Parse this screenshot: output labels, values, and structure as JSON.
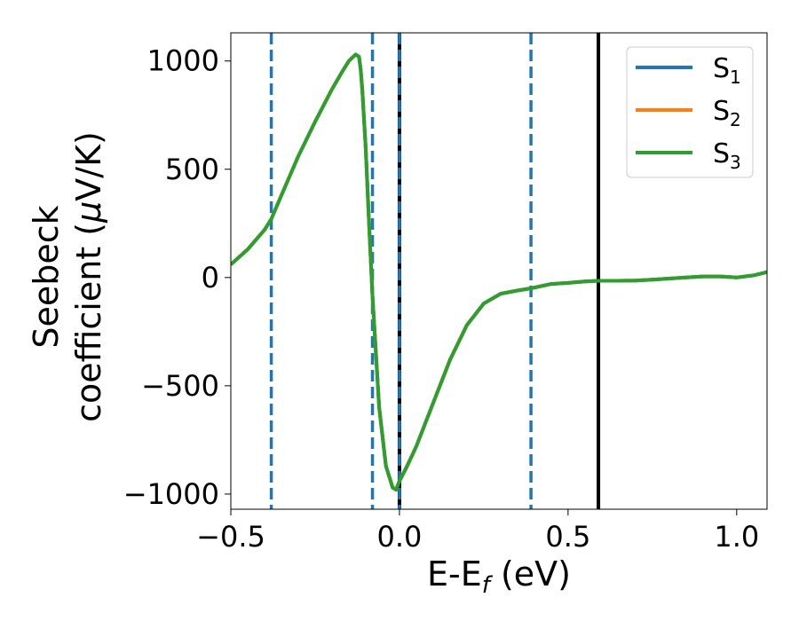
{
  "chart_data": {
    "type": "line",
    "title": "",
    "xlabel_main": "E-E",
    "xlabel_sub": "f",
    "xlabel_tail": " (eV)",
    "ylabel_line1": "Seebeck",
    "ylabel_line2": "coefficient  (",
    "ylabel_mu": "μ",
    "ylabel_tail": "V/K)",
    "xlim": [
      -0.5,
      1.09
    ],
    "ylim": [
      -1070,
      1130
    ],
    "xticks": [
      -0.5,
      0.0,
      0.5,
      1.0
    ],
    "xtick_labels": [
      "−0.5",
      "0.0",
      "0.5",
      "1.0"
    ],
    "yticks": [
      -1000,
      -500,
      0,
      500,
      1000
    ],
    "ytick_labels": [
      "−1000",
      "−500",
      "0",
      "500",
      "1000"
    ],
    "grid": false,
    "legend_position": "top-right",
    "vlines_dashed": {
      "color": "#1f77b4",
      "x": [
        -0.38,
        -0.08,
        0.0,
        0.39
      ]
    },
    "vlines_solid": {
      "color": "#000000",
      "x": [
        0.0,
        0.59
      ]
    },
    "series": [
      {
        "name": "S",
        "sub": "1",
        "color": "#1f77b4"
      },
      {
        "name": "S",
        "sub": "2",
        "color": "#ff7f0e"
      },
      {
        "name": "S",
        "sub": "3",
        "color": "#2ca02c"
      }
    ],
    "x": [
      -0.5,
      -0.45,
      -0.4,
      -0.38,
      -0.35,
      -0.3,
      -0.25,
      -0.2,
      -0.17,
      -0.15,
      -0.13,
      -0.12,
      -0.115,
      -0.11,
      -0.1,
      -0.09,
      -0.08,
      -0.06,
      -0.04,
      -0.02,
      -0.01,
      0.0,
      0.02,
      0.05,
      0.1,
      0.15,
      0.2,
      0.25,
      0.3,
      0.35,
      0.39,
      0.45,
      0.5,
      0.55,
      0.59,
      0.65,
      0.7,
      0.75,
      0.8,
      0.85,
      0.9,
      0.95,
      1.0,
      1.05,
      1.09
    ],
    "y": [
      60,
      130,
      220,
      270,
      380,
      560,
      720,
      870,
      950,
      1000,
      1030,
      1020,
      960,
      860,
      600,
      250,
      -80,
      -600,
      -870,
      -970,
      -980,
      -940,
      -880,
      -780,
      -580,
      -380,
      -220,
      -120,
      -75,
      -60,
      -50,
      -30,
      -25,
      -18,
      -15,
      -15,
      -14,
      -10,
      -5,
      0,
      5,
      5,
      0,
      10,
      25
    ],
    "series_values_note_shared": true
  }
}
